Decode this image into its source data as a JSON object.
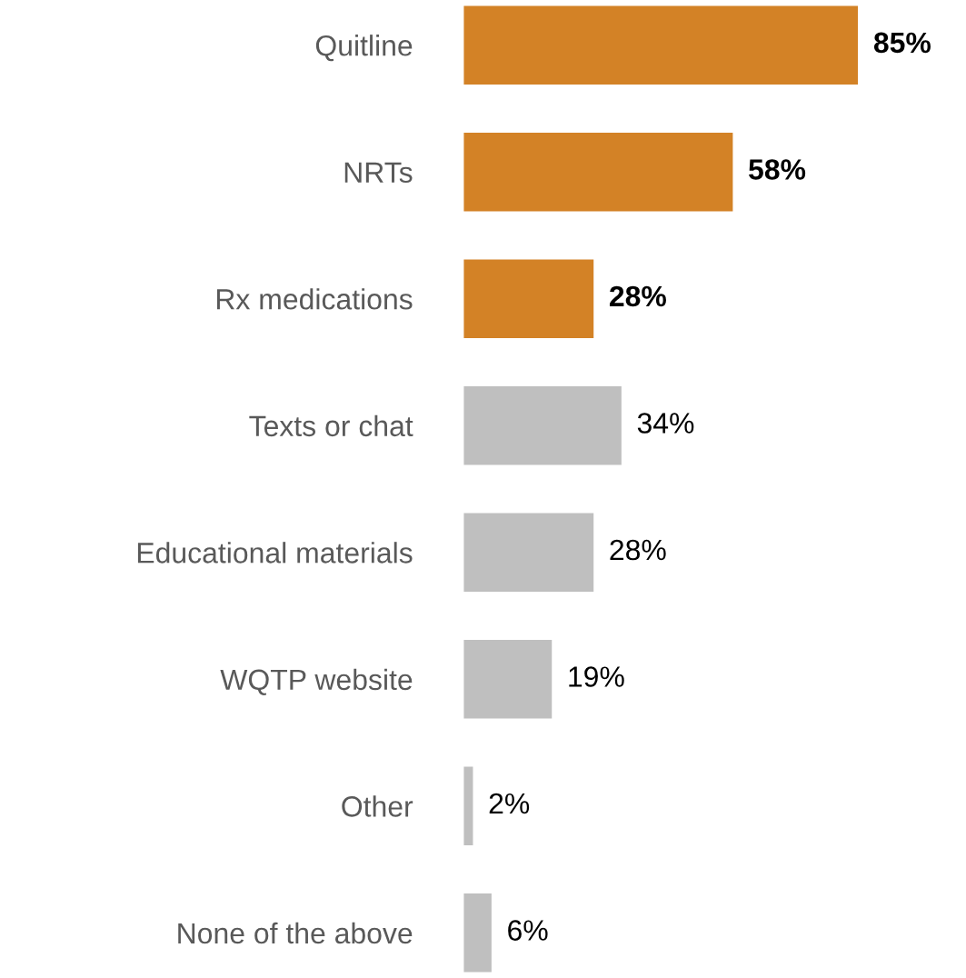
{
  "chart_data": {
    "type": "bar",
    "orientation": "horizontal",
    "categories": [
      "Quitline",
      "NRTs",
      "Rx medications",
      "Texts or chat",
      "Educational materials",
      "WQTP website",
      "Other",
      "None of the above"
    ],
    "values": [
      85,
      58,
      28,
      34,
      28,
      19,
      2,
      6
    ],
    "colors": [
      "#d38226",
      "#d38226",
      "#d38226",
      "#bfbfbf",
      "#bfbfbf",
      "#bfbfbf",
      "#bfbfbf",
      "#bfbfbf"
    ],
    "value_labels": [
      "85%",
      "58%",
      "28%",
      "34%",
      "28%",
      "19%",
      "2%",
      "6%"
    ],
    "tick_labels": "y",
    "grid": false,
    "legend": false
  }
}
